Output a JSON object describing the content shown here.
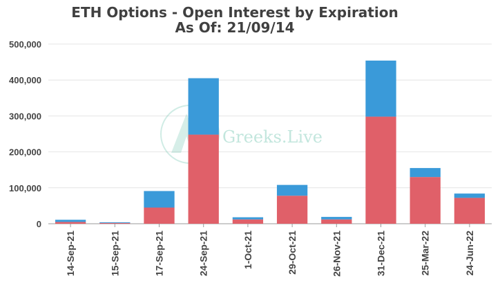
{
  "chart_data": {
    "type": "bar",
    "stacked": true,
    "title": "ETH Options - Open Interest by Expiration",
    "subtitle": "As Of: 21/09/14",
    "categories": [
      "14-Sep-21",
      "15-Sep-21",
      "17-Sep-21",
      "24-Sep-21",
      "1-Oct-21",
      "29-Oct-21",
      "26-Nov-21",
      "31-Dec-21",
      "25-Mar-22",
      "24-Jun-22"
    ],
    "series": [
      {
        "color": "#e06069",
        "values": [
          5000,
          2000,
          45000,
          248000,
          12000,
          78000,
          12000,
          298000,
          130000,
          72000
        ]
      },
      {
        "color": "#3a9ad9",
        "values": [
          6000,
          2000,
          46000,
          157000,
          6000,
          30000,
          7000,
          156000,
          25000,
          12000
        ]
      }
    ],
    "yticks": [
      "0",
      "100,000",
      "200,000",
      "300,000",
      "400,000",
      "500,000"
    ],
    "ylim": [
      0,
      500000
    ],
    "grid": true,
    "legend": "none"
  },
  "watermark": {
    "text": "Greeks.Live",
    "color": "#78c8b4"
  }
}
